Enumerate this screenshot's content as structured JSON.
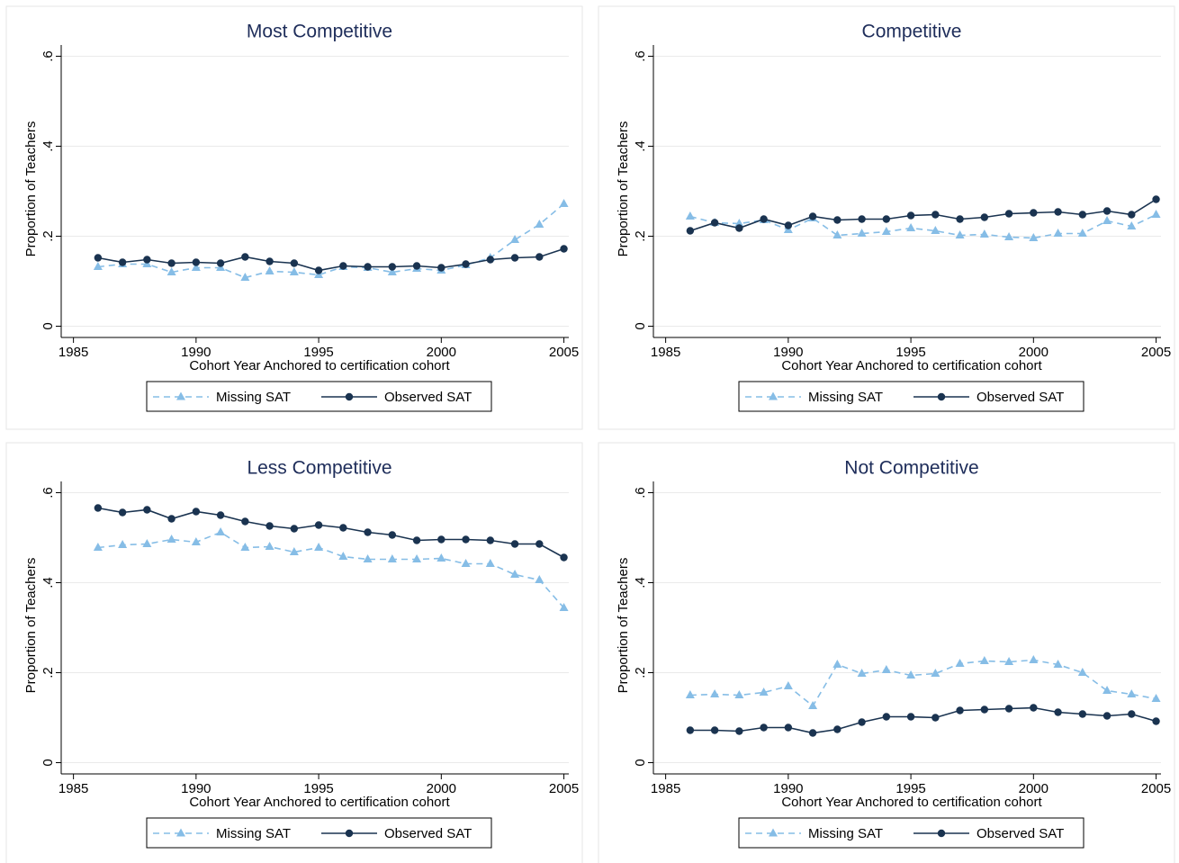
{
  "chart_data": [
    {
      "type": "line",
      "title": "Most Competitive",
      "x_label": "Cohort Year Anchored to certification cohort",
      "y_label": "Proportion of Teachers",
      "x": [
        1986,
        1987,
        1988,
        1989,
        1990,
        1991,
        1992,
        1993,
        1994,
        1995,
        1996,
        1997,
        1998,
        1999,
        2000,
        2001,
        2002,
        2003,
        2004,
        2005
      ],
      "xlim": [
        1984.5,
        2005.2
      ],
      "xticks": [
        1985,
        1990,
        1995,
        2000,
        2005
      ],
      "ylim": [
        -0.025,
        0.625
      ],
      "yticks": [
        0,
        {
          "value": 0.2,
          "label": ".2"
        },
        {
          "value": 0.4,
          "label": ".4"
        },
        {
          "value": 0.6,
          "label": ".6"
        }
      ],
      "grid": true,
      "series": [
        {
          "name": "Missing SAT",
          "color": "#86bde6",
          "marker": "triangle",
          "style": "dashed",
          "values": [
            0.132,
            0.138,
            0.138,
            0.12,
            0.13,
            0.13,
            0.108,
            0.122,
            0.12,
            0.114,
            0.132,
            0.13,
            0.12,
            0.128,
            0.124,
            0.136,
            0.152,
            0.192,
            0.226,
            0.272
          ]
        },
        {
          "name": "Observed SAT",
          "color": "#1a3350",
          "marker": "circle",
          "style": "solid",
          "values": [
            0.152,
            0.142,
            0.148,
            0.14,
            0.142,
            0.14,
            0.154,
            0.144,
            0.14,
            0.124,
            0.134,
            0.132,
            0.132,
            0.134,
            0.13,
            0.138,
            0.148,
            0.152,
            0.154,
            0.172
          ]
        }
      ]
    },
    {
      "type": "line",
      "title": "Competitive",
      "x_label": "Cohort Year Anchored to certification cohort",
      "y_label": "Proportion of Teachers",
      "x": [
        1986,
        1987,
        1988,
        1989,
        1990,
        1991,
        1992,
        1993,
        1994,
        1995,
        1996,
        1997,
        1998,
        1999,
        2000,
        2001,
        2002,
        2003,
        2004,
        2005
      ],
      "xlim": [
        1984.5,
        2005.2
      ],
      "xticks": [
        1985,
        1990,
        1995,
        2000,
        2005
      ],
      "ylim": [
        -0.025,
        0.625
      ],
      "yticks": [
        0,
        {
          "value": 0.2,
          "label": ".2"
        },
        {
          "value": 0.4,
          "label": ".4"
        },
        {
          "value": 0.6,
          "label": ".6"
        }
      ],
      "grid": true,
      "series": [
        {
          "name": "Missing SAT",
          "color": "#86bde6",
          "marker": "triangle",
          "style": "dashed",
          "values": [
            0.244,
            0.23,
            0.228,
            0.236,
            0.214,
            0.24,
            0.202,
            0.206,
            0.21,
            0.218,
            0.212,
            0.202,
            0.204,
            0.198,
            0.196,
            0.206,
            0.206,
            0.234,
            0.222,
            0.248
          ]
        },
        {
          "name": "Observed SAT",
          "color": "#1a3350",
          "marker": "circle",
          "style": "solid",
          "values": [
            0.212,
            0.23,
            0.218,
            0.238,
            0.224,
            0.244,
            0.236,
            0.238,
            0.238,
            0.246,
            0.248,
            0.238,
            0.242,
            0.25,
            0.252,
            0.254,
            0.248,
            0.256,
            0.248,
            0.282
          ]
        }
      ]
    },
    {
      "type": "line",
      "title": "Less Competitive",
      "x_label": "Cohort Year Anchored to certification cohort",
      "y_label": "Proportion of Teachers",
      "x": [
        1986,
        1987,
        1988,
        1989,
        1990,
        1991,
        1992,
        1993,
        1994,
        1995,
        1996,
        1997,
        1998,
        1999,
        2000,
        2001,
        2002,
        2003,
        2004,
        2005
      ],
      "xlim": [
        1984.5,
        2005.2
      ],
      "xticks": [
        1985,
        1990,
        1995,
        2000,
        2005
      ],
      "ylim": [
        -0.025,
        0.625
      ],
      "yticks": [
        0,
        {
          "value": 0.2,
          "label": ".2"
        },
        {
          "value": 0.4,
          "label": ".4"
        },
        {
          "value": 0.6,
          "label": ".6"
        }
      ],
      "grid": true,
      "series": [
        {
          "name": "Missing SAT",
          "color": "#86bde6",
          "marker": "triangle",
          "style": "dashed",
          "values": [
            0.478,
            0.484,
            0.486,
            0.496,
            0.49,
            0.512,
            0.478,
            0.48,
            0.468,
            0.478,
            0.458,
            0.452,
            0.452,
            0.452,
            0.454,
            0.442,
            0.442,
            0.418,
            0.406,
            0.344
          ]
        },
        {
          "name": "Observed SAT",
          "color": "#1a3350",
          "marker": "circle",
          "style": "solid",
          "values": [
            0.566,
            0.556,
            0.562,
            0.542,
            0.558,
            0.55,
            0.536,
            0.526,
            0.52,
            0.528,
            0.522,
            0.512,
            0.506,
            0.494,
            0.496,
            0.496,
            0.494,
            0.486,
            0.486,
            0.456
          ]
        }
      ]
    },
    {
      "type": "line",
      "title": "Not Competitive",
      "x_label": "Cohort Year Anchored to certification cohort",
      "y_label": "Proportion of Teachers",
      "x": [
        1986,
        1987,
        1988,
        1989,
        1990,
        1991,
        1992,
        1993,
        1994,
        1995,
        1996,
        1997,
        1998,
        1999,
        2000,
        2001,
        2002,
        2003,
        2004,
        2005
      ],
      "xlim": [
        1984.5,
        2005.2
      ],
      "xticks": [
        1985,
        1990,
        1995,
        2000,
        2005
      ],
      "ylim": [
        -0.025,
        0.625
      ],
      "yticks": [
        0,
        {
          "value": 0.2,
          "label": ".2"
        },
        {
          "value": 0.4,
          "label": ".4"
        },
        {
          "value": 0.6,
          "label": ".6"
        }
      ],
      "grid": true,
      "series": [
        {
          "name": "Missing SAT",
          "color": "#86bde6",
          "marker": "triangle",
          "style": "dashed",
          "values": [
            0.15,
            0.152,
            0.15,
            0.156,
            0.17,
            0.126,
            0.218,
            0.198,
            0.206,
            0.194,
            0.198,
            0.22,
            0.226,
            0.224,
            0.228,
            0.218,
            0.2,
            0.16,
            0.152,
            0.142
          ]
        },
        {
          "name": "Observed SAT",
          "color": "#1a3350",
          "marker": "circle",
          "style": "solid",
          "values": [
            0.072,
            0.072,
            0.07,
            0.078,
            0.078,
            0.066,
            0.074,
            0.09,
            0.102,
            0.102,
            0.1,
            0.116,
            0.118,
            0.12,
            0.122,
            0.112,
            0.108,
            0.104,
            0.108,
            0.092
          ]
        }
      ]
    }
  ]
}
